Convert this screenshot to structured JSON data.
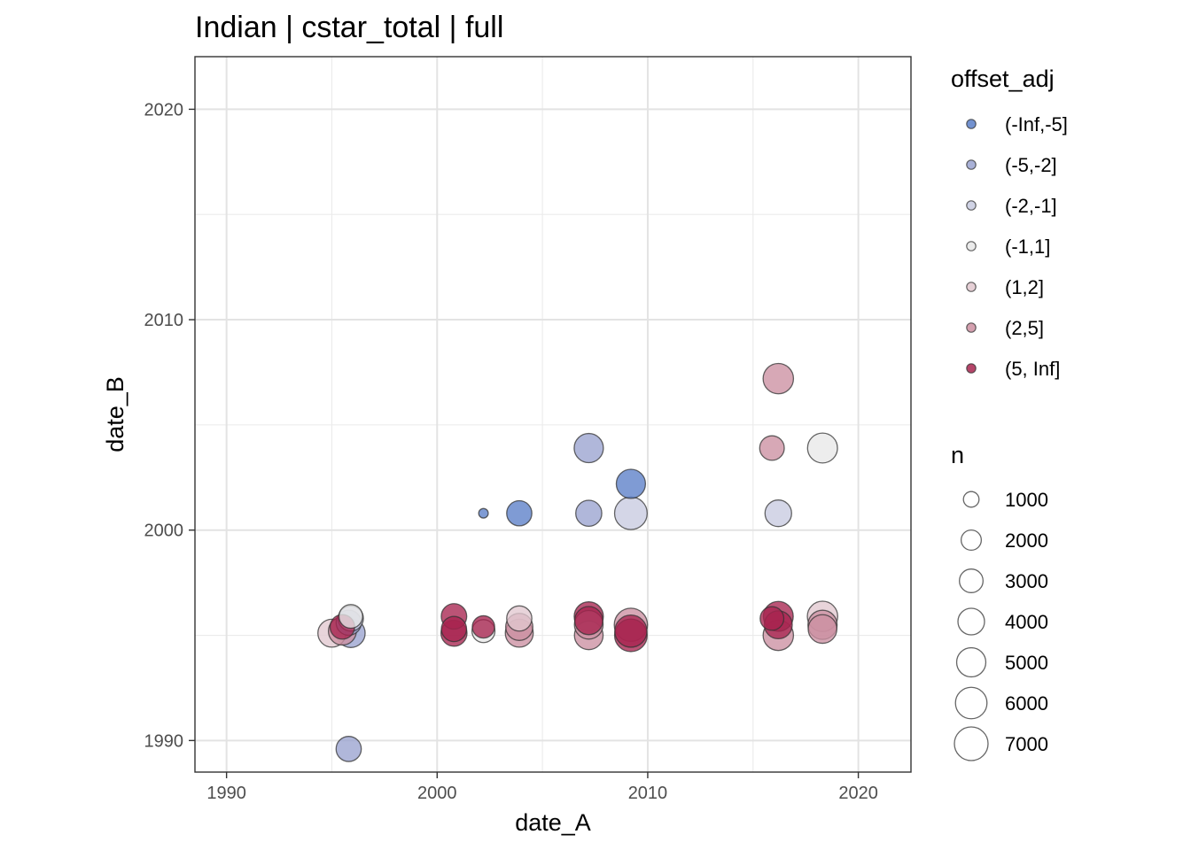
{
  "chart_data": {
    "type": "scatter",
    "title": "Indian | cstar_total | full",
    "xlabel": "date_A",
    "ylabel": "date_B",
    "xlim": [
      1988.5,
      2022.5
    ],
    "ylim": [
      1988.5,
      2022.5
    ],
    "x_ticks": [
      "1990",
      "2000",
      "2010",
      "2020"
    ],
    "y_ticks": [
      "1990",
      "2000",
      "2010",
      "2020"
    ],
    "grid": true,
    "legend_position": "right",
    "color_legend": {
      "title": "offset_adj",
      "entries": [
        {
          "label": "(-Inf,-5]",
          "color": "#5b7fc8"
        },
        {
          "label": "(-5,-2]",
          "color": "#9aa3d0"
        },
        {
          "label": "(-2,-1]",
          "color": "#c8cbe0"
        },
        {
          "label": "(-1,1]",
          "color": "#e8e8e8"
        },
        {
          "label": "(1,2]",
          "color": "#e2c8cf"
        },
        {
          "label": "(2,5]",
          "color": "#cc8fa1"
        },
        {
          "label": "(5, Inf]",
          "color": "#a8244f"
        }
      ]
    },
    "size_legend": {
      "title": "n",
      "entries": [
        {
          "label": "1000",
          "value": 1000
        },
        {
          "label": "2000",
          "value": 2000
        },
        {
          "label": "3000",
          "value": 3000
        },
        {
          "label": "4000",
          "value": 4000
        },
        {
          "label": "5000",
          "value": 5000
        },
        {
          "label": "6000",
          "value": 6000
        },
        {
          "label": "7000",
          "value": 7000
        }
      ]
    },
    "series": [
      {
        "name": "(-Inf,-5]",
        "points": [
          {
            "x": 2002.2,
            "y": 2000.8,
            "n": 200
          },
          {
            "x": 2003.9,
            "y": 2000.8,
            "n": 3500
          },
          {
            "x": 2009.2,
            "y": 2002.2,
            "n": 5000
          }
        ]
      },
      {
        "name": "(-5,-2]",
        "points": [
          {
            "x": 1995.8,
            "y": 1989.6,
            "n": 3500
          },
          {
            "x": 2007.2,
            "y": 2003.9,
            "n": 5000
          },
          {
            "x": 2007.2,
            "y": 2000.8,
            "n": 3800
          },
          {
            "x": 1995.9,
            "y": 1995.1,
            "n": 4800
          },
          {
            "x": 1995.8,
            "y": 1995.6,
            "n": 3500
          }
        ]
      },
      {
        "name": "(-2,-1]",
        "points": [
          {
            "x": 2009.2,
            "y": 2000.8,
            "n": 6500
          },
          {
            "x": 2016.2,
            "y": 2000.8,
            "n": 4000
          },
          {
            "x": 1995.9,
            "y": 1995.8,
            "n": 3500
          }
        ]
      },
      {
        "name": "(-1,1]",
        "points": [
          {
            "x": 2018.3,
            "y": 2003.9,
            "n": 5300
          },
          {
            "x": 1995.9,
            "y": 1995.9,
            "n": 3000
          },
          {
            "x": 2002.2,
            "y": 1995.2,
            "n": 2800
          }
        ]
      },
      {
        "name": "(1,2]",
        "points": [
          {
            "x": 1995.0,
            "y": 1995.1,
            "n": 4500
          },
          {
            "x": 2018.3,
            "y": 1995.9,
            "n": 5500
          },
          {
            "x": 2003.9,
            "y": 1995.8,
            "n": 3500
          }
        ]
      },
      {
        "name": "(2,5]",
        "points": [
          {
            "x": 2016.2,
            "y": 2007.2,
            "n": 5500
          },
          {
            "x": 2015.9,
            "y": 2003.9,
            "n": 3300
          },
          {
            "x": 1995.5,
            "y": 1995.2,
            "n": 4500
          },
          {
            "x": 2003.9,
            "y": 1995.1,
            "n": 4500
          },
          {
            "x": 2003.9,
            "y": 1995.4,
            "n": 4200
          },
          {
            "x": 2007.2,
            "y": 1995.0,
            "n": 4800
          },
          {
            "x": 2007.2,
            "y": 1995.5,
            "n": 4800
          },
          {
            "x": 2009.2,
            "y": 1995.5,
            "n": 6800
          },
          {
            "x": 2016.2,
            "y": 1995.0,
            "n": 5500
          },
          {
            "x": 2018.3,
            "y": 1995.5,
            "n": 5000
          },
          {
            "x": 2018.3,
            "y": 1995.3,
            "n": 4800
          }
        ]
      },
      {
        "name": "(5, Inf]",
        "points": [
          {
            "x": 2000.8,
            "y": 1995.9,
            "n": 3600
          },
          {
            "x": 2000.8,
            "y": 1995.1,
            "n": 3800
          },
          {
            "x": 2000.8,
            "y": 1995.3,
            "n": 3500
          },
          {
            "x": 2002.2,
            "y": 1995.4,
            "n": 2600
          },
          {
            "x": 2007.2,
            "y": 1995.9,
            "n": 5000
          },
          {
            "x": 2007.2,
            "y": 1995.7,
            "n": 4600
          },
          {
            "x": 2009.2,
            "y": 1995.0,
            "n": 6500
          },
          {
            "x": 2009.2,
            "y": 1995.2,
            "n": 6300
          },
          {
            "x": 2016.2,
            "y": 1995.9,
            "n": 5300
          },
          {
            "x": 2016.2,
            "y": 1995.5,
            "n": 4500
          },
          {
            "x": 2015.9,
            "y": 1995.8,
            "n": 3000
          },
          {
            "x": 1995.5,
            "y": 1995.4,
            "n": 3300
          }
        ]
      }
    ]
  }
}
